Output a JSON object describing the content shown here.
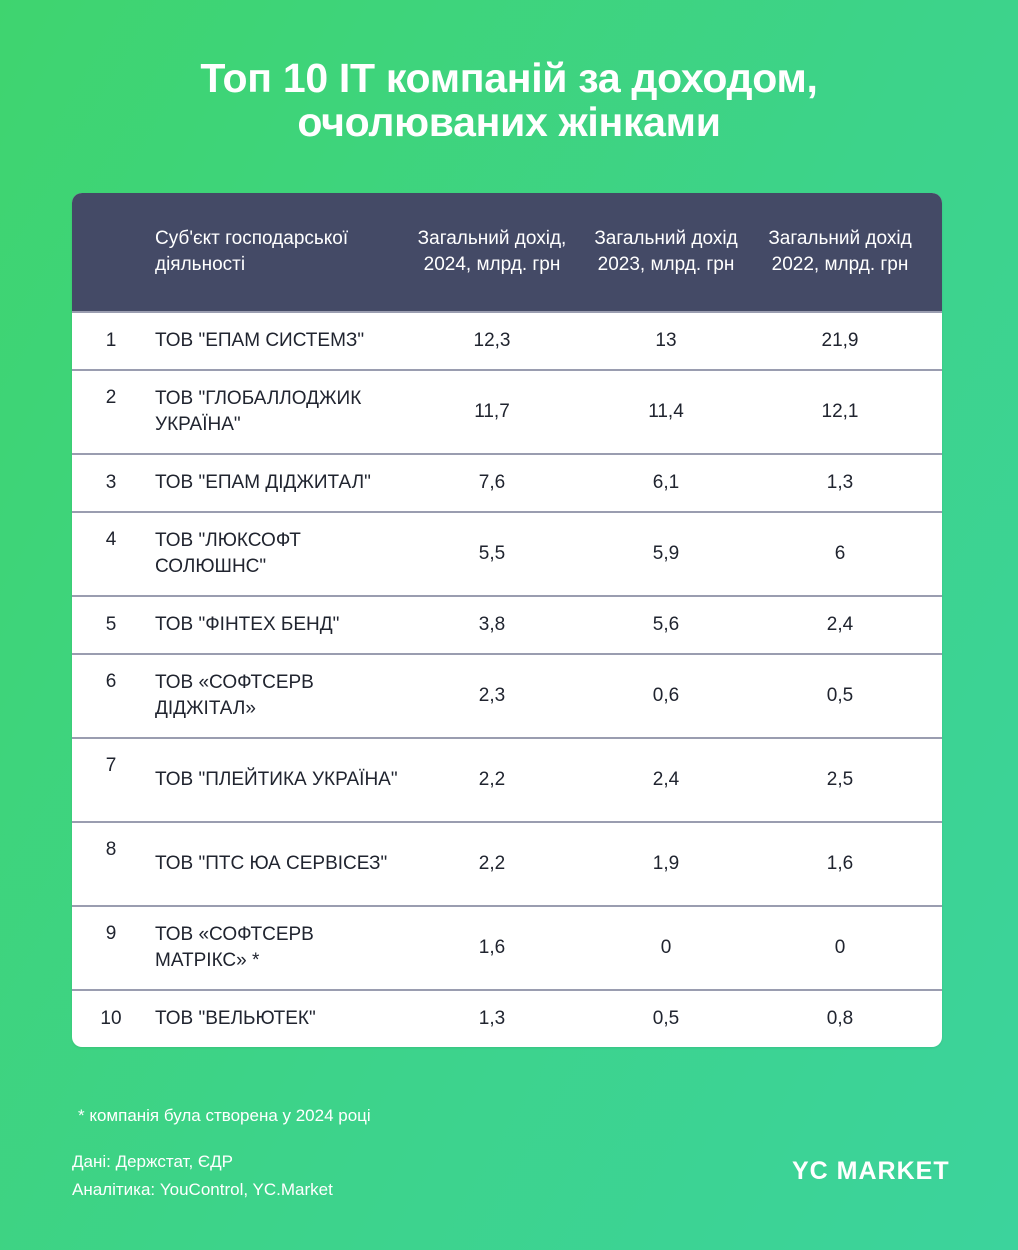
{
  "title_line1": "Топ 10 IT компаній за доходом,",
  "title_line2": "очолюваних жінками",
  "chart_data": {
    "type": "table",
    "columns": [
      "",
      "Суб'єкт господарської діяльності",
      "Загальний дохід, 2024, млрд. грн",
      "Загальний дохід 2023, млрд. грн",
      "Загальний дохід 2022, млрд. грн"
    ],
    "rows": [
      [
        "1",
        "ТОВ \"ЕПАМ СИСТЕМЗ\"",
        "12,3",
        "13",
        "21,9"
      ],
      [
        "2",
        "ТОВ \"ГЛОБАЛЛОДЖИК УКРАЇНА\"",
        "11,7",
        "11,4",
        "12,1"
      ],
      [
        "3",
        "ТОВ \"ЕПАМ ДІДЖИТАЛ\"",
        "7,6",
        "6,1",
        "1,3"
      ],
      [
        "4",
        "ТОВ \"ЛЮКСОФТ СОЛЮШНС\"",
        "5,5",
        "5,9",
        "6"
      ],
      [
        "5",
        "ТОВ \"ФІНТЕХ БЕНД\"",
        "3,8",
        "5,6",
        "2,4"
      ],
      [
        "6",
        "ТОВ «СОФТСЕРВ ДІДЖІТАЛ»",
        "2,3",
        "0,6",
        "0,5"
      ],
      [
        "7",
        "ТОВ \"ПЛЕЙТИКА УКРАЇНА\"",
        "2,2",
        "2,4",
        "2,5"
      ],
      [
        "8",
        "ТОВ \"ПТС ЮА СЕРВІСЕЗ\"",
        "2,2",
        "1,9",
        "1,6"
      ],
      [
        "9",
        "ТОВ «СОФТСЕРВ МАТРІКС» *",
        "1,6",
        "0",
        "0"
      ],
      [
        "10",
        "ТОВ \"ВЕЛЬЮТЕК\"",
        "1,3",
        "0,5",
        "0,8"
      ]
    ]
  },
  "footnote": "* компанія була створена у 2024 році",
  "source_data": "Дані: Держстат, ЄДР",
  "source_analytics": "Аналітика: YouControl, YC.Market",
  "logo": "YC MARKET",
  "colors": {
    "header_bg": "#444a66",
    "background": "#3dd38a"
  }
}
